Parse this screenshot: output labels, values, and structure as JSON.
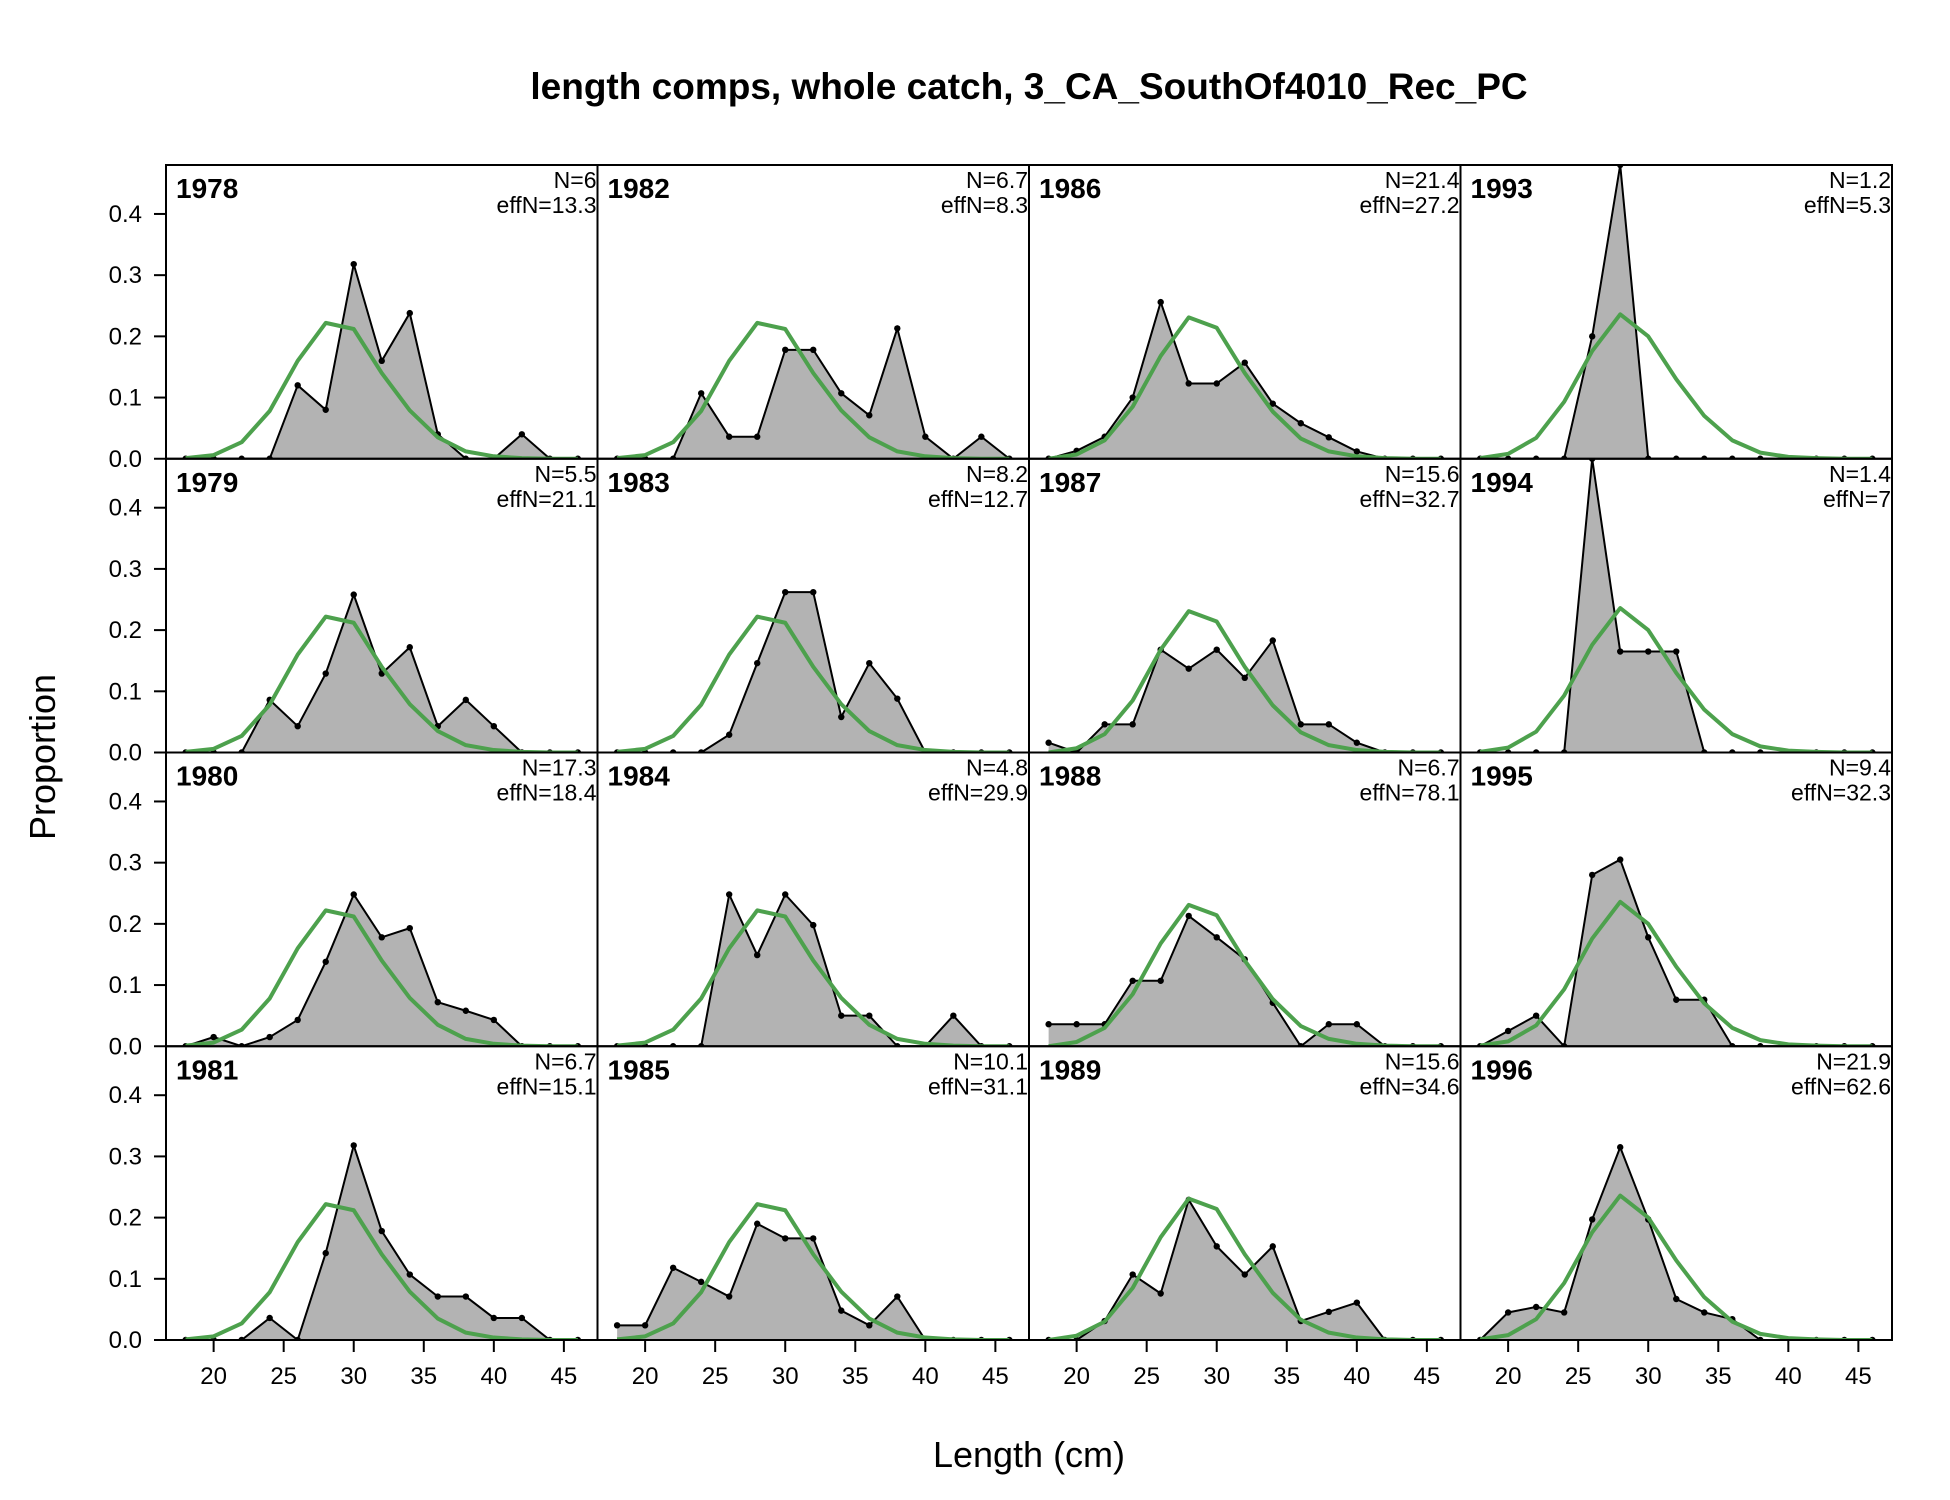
{
  "chart_data": {
    "type": "area",
    "title": "length comps, whole catch, 3_CA_SouthOf4010_Rec_PC",
    "xlabel": "Length (cm)",
    "ylabel": "Proportion",
    "x_ticks": [
      20,
      25,
      30,
      35,
      40,
      45
    ],
    "y_ticks": [
      "0.0",
      "0.1",
      "0.2",
      "0.3",
      "0.4"
    ],
    "xlim": [
      16.6,
      47.4
    ],
    "ylim": [
      0,
      0.48
    ],
    "grid": false,
    "layout": {
      "rows": 4,
      "cols": 4,
      "order": "column-major"
    },
    "x": [
      18,
      20,
      22,
      24,
      26,
      28,
      30,
      32,
      34,
      36,
      38,
      40,
      42,
      44,
      46
    ],
    "colors": {
      "observed_fill": "#b3b3b3",
      "observed_line": "#000000",
      "expected_line": "#4da14d",
      "zero_line": "#bebebe"
    },
    "panels": [
      {
        "year": "1978",
        "n_label": "N=6",
        "effn_label": "effN=13.3",
        "observed": [
          0,
          0,
          0,
          0,
          0.12,
          0.08,
          0.318,
          0.16,
          0.238,
          0.04,
          0,
          0,
          0.04,
          0,
          0
        ],
        "expected": [
          0.001,
          0.006,
          0.027,
          0.078,
          0.16,
          0.222,
          0.212,
          0.14,
          0.079,
          0.035,
          0.012,
          0.004,
          0.001,
          0,
          0
        ]
      },
      {
        "year": "1979",
        "n_label": "N=5.5",
        "effn_label": "effN=21.1",
        "observed": [
          0,
          0,
          0,
          0.086,
          0.043,
          0.129,
          0.258,
          0.129,
          0.172,
          0.043,
          0.086,
          0.043,
          0,
          0,
          0
        ],
        "expected": [
          0.001,
          0.006,
          0.027,
          0.078,
          0.16,
          0.222,
          0.212,
          0.14,
          0.079,
          0.035,
          0.012,
          0.004,
          0.001,
          0,
          0
        ]
      },
      {
        "year": "1980",
        "n_label": "N=17.3",
        "effn_label": "effN=18.4",
        "observed": [
          0,
          0.015,
          0,
          0.015,
          0.043,
          0.138,
          0.248,
          0.178,
          0.193,
          0.072,
          0.058,
          0.043,
          0,
          0,
          0
        ],
        "expected": [
          0.001,
          0.006,
          0.027,
          0.078,
          0.16,
          0.222,
          0.212,
          0.14,
          0.079,
          0.035,
          0.012,
          0.004,
          0.001,
          0,
          0
        ]
      },
      {
        "year": "1981",
        "n_label": "N=6.7",
        "effn_label": "effN=15.1",
        "observed": [
          0,
          0,
          0,
          0.036,
          0,
          0.142,
          0.318,
          0.178,
          0.107,
          0.071,
          0.071,
          0.036,
          0.036,
          0,
          0
        ],
        "expected": [
          0.001,
          0.006,
          0.027,
          0.078,
          0.16,
          0.222,
          0.212,
          0.14,
          0.079,
          0.035,
          0.012,
          0.004,
          0.001,
          0,
          0
        ]
      },
      {
        "year": "1982",
        "n_label": "N=6.7",
        "effn_label": "effN=8.3",
        "observed": [
          0,
          0,
          0,
          0.107,
          0.036,
          0.036,
          0.178,
          0.178,
          0.107,
          0.071,
          0.213,
          0.036,
          0,
          0.036,
          0
        ],
        "expected": [
          0.001,
          0.006,
          0.027,
          0.078,
          0.16,
          0.222,
          0.212,
          0.14,
          0.079,
          0.035,
          0.012,
          0.004,
          0.001,
          0,
          0
        ]
      },
      {
        "year": "1983",
        "n_label": "N=8.2",
        "effn_label": "effN=12.7",
        "observed": [
          0,
          0,
          0,
          0,
          0.029,
          0.146,
          0.262,
          0.262,
          0.058,
          0.146,
          0.088,
          0,
          0,
          0,
          0
        ],
        "expected": [
          0.001,
          0.006,
          0.027,
          0.078,
          0.16,
          0.222,
          0.212,
          0.14,
          0.079,
          0.035,
          0.012,
          0.004,
          0.001,
          0,
          0
        ]
      },
      {
        "year": "1984",
        "n_label": "N=4.8",
        "effn_label": "effN=29.9",
        "observed": [
          0,
          0,
          0,
          0,
          0.248,
          0.149,
          0.248,
          0.198,
          0.05,
          0.05,
          0,
          0,
          0.05,
          0,
          0
        ],
        "expected": [
          0.001,
          0.006,
          0.027,
          0.078,
          0.16,
          0.222,
          0.212,
          0.14,
          0.079,
          0.035,
          0.012,
          0.004,
          0.001,
          0,
          0
        ]
      },
      {
        "year": "1985",
        "n_label": "N=10.1",
        "effn_label": "effN=31.1",
        "observed": [
          0.024,
          0.024,
          0.118,
          0.095,
          0.071,
          0.19,
          0.166,
          0.166,
          0.048,
          0.024,
          0.071,
          0,
          0,
          0,
          0
        ],
        "expected": [
          0.001,
          0.006,
          0.027,
          0.078,
          0.16,
          0.222,
          0.212,
          0.14,
          0.079,
          0.035,
          0.012,
          0.004,
          0.001,
          0,
          0
        ]
      },
      {
        "year": "1986",
        "n_label": "N=21.4",
        "effn_label": "effN=27.2",
        "observed": [
          0,
          0.013,
          0.036,
          0.1,
          0.256,
          0.123,
          0.123,
          0.157,
          0.09,
          0.058,
          0.035,
          0.012,
          0,
          0,
          0
        ],
        "expected": [
          0,
          0.007,
          0.03,
          0.085,
          0.168,
          0.231,
          0.214,
          0.14,
          0.077,
          0.033,
          0.012,
          0.004,
          0.001,
          0,
          0
        ]
      },
      {
        "year": "1987",
        "n_label": "N=15.6",
        "effn_label": "effN=32.7",
        "observed": [
          0.016,
          0,
          0.046,
          0.046,
          0.168,
          0.137,
          0.168,
          0.122,
          0.183,
          0.046,
          0.046,
          0.016,
          0,
          0,
          0
        ],
        "expected": [
          0,
          0.007,
          0.03,
          0.085,
          0.168,
          0.231,
          0.214,
          0.14,
          0.077,
          0.033,
          0.012,
          0.004,
          0.001,
          0,
          0
        ]
      },
      {
        "year": "1988",
        "n_label": "N=6.7",
        "effn_label": "effN=78.1",
        "observed": [
          0.036,
          0.036,
          0.036,
          0.107,
          0.107,
          0.213,
          0.178,
          0.142,
          0.071,
          0,
          0.036,
          0.036,
          0,
          0,
          0
        ],
        "expected": [
          0,
          0.007,
          0.03,
          0.085,
          0.168,
          0.231,
          0.214,
          0.14,
          0.077,
          0.033,
          0.012,
          0.004,
          0.001,
          0,
          0
        ]
      },
      {
        "year": "1989",
        "n_label": "N=15.6",
        "effn_label": "effN=34.6",
        "observed": [
          0,
          0,
          0.031,
          0.107,
          0.076,
          0.229,
          0.153,
          0.107,
          0.153,
          0.031,
          0.046,
          0.061,
          0,
          0,
          0
        ],
        "expected": [
          0,
          0.007,
          0.03,
          0.085,
          0.168,
          0.231,
          0.214,
          0.14,
          0.077,
          0.033,
          0.012,
          0.004,
          0.001,
          0,
          0
        ]
      },
      {
        "year": "1993",
        "n_label": "N=1.2",
        "effn_label": "effN=5.3",
        "observed": [
          0,
          0,
          0,
          0,
          0.2,
          0.8,
          0,
          0,
          0,
          0,
          0,
          0,
          0,
          0,
          0
        ],
        "expected": [
          0.001,
          0.008,
          0.034,
          0.093,
          0.176,
          0.236,
          0.2,
          0.13,
          0.07,
          0.03,
          0.01,
          0.003,
          0.001,
          0,
          0
        ]
      },
      {
        "year": "1994",
        "n_label": "N=1.4",
        "effn_label": "effN=7",
        "observed": [
          0,
          0,
          0,
          0,
          0.5,
          0.165,
          0.165,
          0.165,
          0,
          0,
          0,
          0,
          0,
          0,
          0
        ],
        "expected": [
          0.001,
          0.008,
          0.034,
          0.093,
          0.176,
          0.236,
          0.2,
          0.13,
          0.07,
          0.03,
          0.01,
          0.003,
          0.001,
          0,
          0
        ]
      },
      {
        "year": "1995",
        "n_label": "N=9.4",
        "effn_label": "effN=32.3",
        "observed": [
          0,
          0.025,
          0.05,
          0,
          0.28,
          0.305,
          0.178,
          0.076,
          0.076,
          0,
          0,
          0,
          0,
          0,
          0
        ],
        "expected": [
          0.001,
          0.008,
          0.034,
          0.093,
          0.176,
          0.236,
          0.2,
          0.13,
          0.07,
          0.03,
          0.01,
          0.003,
          0.001,
          0,
          0
        ]
      },
      {
        "year": "1996",
        "n_label": "N=21.9",
        "effn_label": "effN=62.6",
        "observed": [
          0,
          0.045,
          0.054,
          0.045,
          0.197,
          0.315,
          0.197,
          0.067,
          0.045,
          0.034,
          0,
          0,
          0,
          0,
          0
        ],
        "expected": [
          0.001,
          0.008,
          0.034,
          0.093,
          0.176,
          0.236,
          0.2,
          0.13,
          0.07,
          0.03,
          0.01,
          0.003,
          0.001,
          0,
          0
        ]
      }
    ]
  }
}
